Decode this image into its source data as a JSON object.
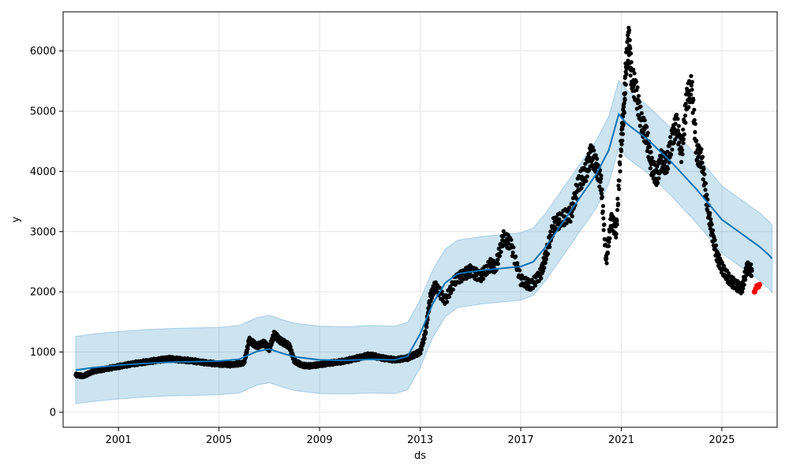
{
  "chart_data": {
    "type": "line",
    "title": "",
    "xlabel": "ds",
    "ylabel": "y",
    "xlim": [
      1998.8,
      2027.2
    ],
    "ylim": [
      -250,
      6650
    ],
    "x_ticks": [
      2001,
      2005,
      2009,
      2013,
      2017,
      2021,
      2025
    ],
    "x_tick_labels": [
      "2001",
      "2005",
      "2009",
      "2013",
      "2017",
      "2021",
      "2025"
    ],
    "y_ticks": [
      0,
      1000,
      2000,
      3000,
      4000,
      5000,
      6000
    ],
    "y_tick_labels": [
      "0",
      "1000",
      "2000",
      "3000",
      "4000",
      "5000",
      "6000"
    ],
    "grid": true,
    "colors": {
      "forecast_line": "#0072B2",
      "interval_fill": "#0072B2",
      "observed": "#000000",
      "test_points": "#ff0000",
      "grid": "#e5e5e5"
    },
    "forecast_x": [
      1999.3,
      2000.0,
      2001.0,
      2002.0,
      2003.0,
      2004.0,
      2005.0,
      2005.8,
      2006.5,
      2007.0,
      2007.5,
      2008.0,
      2009.0,
      2010.0,
      2011.0,
      2012.0,
      2012.5,
      2013.0,
      2013.5,
      2014.0,
      2014.5,
      2015.0,
      2015.5,
      2016.0,
      2017.0,
      2017.5,
      2018.0,
      2018.5,
      2019.0,
      2019.5,
      2020.0,
      2020.5,
      2020.9,
      2021.2,
      2021.5,
      2022.0,
      2023.0,
      2024.0,
      2025.0,
      2026.0,
      2026.5,
      2026.9,
      2027.0
    ],
    "forecast_y": [
      700,
      740,
      780,
      810,
      830,
      840,
      850,
      880,
      1010,
      1050,
      980,
      920,
      870,
      860,
      880,
      870,
      930,
      1300,
      1800,
      2150,
      2300,
      2330,
      2360,
      2380,
      2420,
      2500,
      2750,
      3050,
      3350,
      3650,
      3950,
      4350,
      4950,
      4800,
      4700,
      4550,
      4150,
      3700,
      3200,
      2900,
      2750,
      2600,
      2550
    ],
    "interval_width": 560,
    "observed_x": [
      1999.3,
      1999.6,
      2000.0,
      2000.5,
      2001.0,
      2001.5,
      2002.0,
      2002.5,
      2003.0,
      2003.5,
      2004.0,
      2004.5,
      2005.0,
      2005.5,
      2006.0,
      2006.2,
      2006.5,
      2006.8,
      2007.0,
      2007.2,
      2007.4,
      2007.6,
      2007.8,
      2008.0,
      2008.3,
      2008.6,
      2009.0,
      2009.5,
      2010.0,
      2010.5,
      2011.0,
      2011.5,
      2012.0,
      2012.5,
      2012.8,
      2013.0,
      2013.2,
      2013.4,
      2013.6,
      2014.0,
      2014.4,
      2014.8,
      2015.0,
      2015.4,
      2015.8,
      2016.0,
      2016.3,
      2016.6,
      2017.0,
      2017.4,
      2017.8,
      2018.0,
      2018.3,
      2018.6,
      2019.0,
      2019.3,
      2019.6,
      2019.8,
      2020.0,
      2020.2,
      2020.4,
      2020.6,
      2020.8,
      2021.0,
      2021.1,
      2021.2,
      2021.3,
      2021.4,
      2021.6,
      2021.8,
      2022.0,
      2022.2,
      2022.4,
      2022.6,
      2022.8,
      2023.0,
      2023.2,
      2023.4,
      2023.6,
      2023.8,
      2024.0,
      2024.2,
      2024.4,
      2024.6,
      2024.8,
      2025.0,
      2025.3,
      2025.6,
      2025.8,
      2026.0,
      2026.2
    ],
    "observed_y": [
      620,
      600,
      680,
      720,
      760,
      800,
      830,
      860,
      890,
      870,
      850,
      820,
      800,
      790,
      820,
      1200,
      1100,
      1150,
      1050,
      1300,
      1200,
      1150,
      1100,
      850,
      780,
      770,
      790,
      820,
      850,
      900,
      950,
      900,
      870,
      900,
      960,
      1000,
      1300,
      1900,
      2100,
      1850,
      2200,
      2300,
      2350,
      2250,
      2450,
      2400,
      2900,
      2800,
      2200,
      2100,
      2300,
      2600,
      3100,
      3200,
      3300,
      3800,
      4000,
      4300,
      4100,
      3800,
      2500,
      3200,
      3000,
      4500,
      5000,
      5800,
      6200,
      5600,
      5300,
      4800,
      4600,
      4100,
      3900,
      4200,
      4100,
      4500,
      4800,
      4300,
      5200,
      5400,
      4300,
      4200,
      3500,
      3000,
      2600,
      2400,
      2200,
      2100,
      2050,
      2400,
      2350
    ],
    "test_x": [
      2026.3,
      2026.35,
      2026.4,
      2026.45,
      2026.5
    ],
    "test_y": [
      2000,
      2050,
      2100,
      2080,
      2120
    ]
  }
}
